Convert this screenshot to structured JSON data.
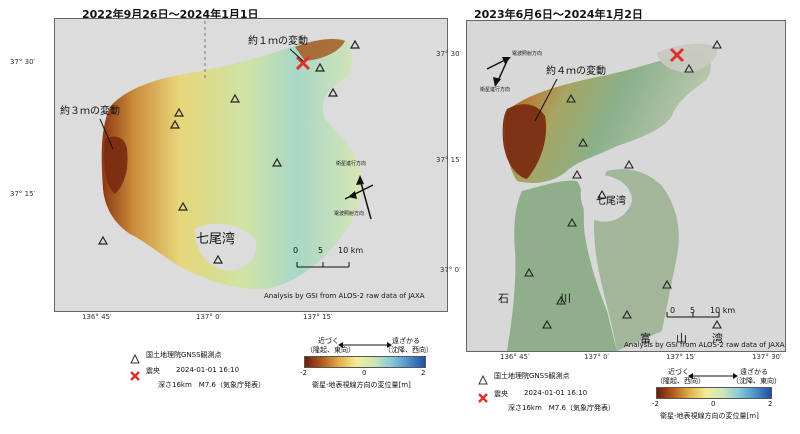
{
  "left": {
    "title": "2022年9月26日～2024年1月1日",
    "lat_labels": [
      "37° 30′",
      "37° 15′"
    ],
    "lon_labels": [
      "136° 45′",
      "137° 0′",
      "137° 15′"
    ],
    "annot_1m": "約１ｍの変動",
    "annot_3m": "約３ｍの変動",
    "bay_label": "七尾湾",
    "scale": [
      "0",
      "5",
      "10 km"
    ],
    "dir_track": "衛星進行方向",
    "dir_look": "電波照射方向",
    "credit": "Analysis by GSI from ALOS-2 raw data of JAXA",
    "legend": {
      "gnss": "国土地理院GNSS観測点",
      "epicenter": "震央",
      "quake_time": "2024-01-01 16:10",
      "quake_info": "深さ16km　M7.6（気象庁発表）",
      "near": "近づく",
      "near_sub": "（隆起、東向）",
      "far": "遠ざかる",
      "far_sub": "（沈降、西向）",
      "ticks": [
        "-2",
        "0",
        "2"
      ],
      "axis": "衛星-地表視線方向の変位量[m]"
    }
  },
  "right": {
    "title": "2023年6月6日～2024年1月2日",
    "lat_labels": [
      "37° 30′",
      "37° 15′",
      "37° 0′"
    ],
    "lon_labels": [
      "136° 45′",
      "137° 0′",
      "137° 15′",
      "137° 30′"
    ],
    "annot_4m": "約４ｍの変動",
    "bay_label": "七尾湾",
    "place_labels": [
      "石",
      "川",
      "富",
      "山",
      "湾"
    ],
    "scale": [
      "0",
      "5",
      "10 km"
    ],
    "dir_look": "電波照射方向",
    "dir_track": "衛星進行方向",
    "credit": "Analysis by GSI from ALOS-2 raw data of JAXA",
    "legend": {
      "gnss": "国土地理院GNSS観測点",
      "epicenter": "震央",
      "quake_time": "2024-01-01 16:10",
      "quake_info": "深さ16km　M7.6（気象庁発表）",
      "near": "近づく",
      "near_sub": "（隆起、西向）",
      "far": "遠ざかる",
      "far_sub": "（沈降、東向）",
      "ticks": [
        "-2",
        "0",
        "2"
      ],
      "axis": "衛星-地表視線方向の変位量[m]"
    }
  },
  "colors": {
    "uplift": "#7a2a10",
    "positive": "#d8b24a",
    "neutral": "#e8e8a0",
    "negative": "#79b8cf",
    "strong_negative": "#1f5bb0",
    "epicenter": "#e0302a"
  },
  "icons": [
    "gnss-triangle-icon",
    "epicenter-x-icon",
    "north-arrow-icon"
  ]
}
